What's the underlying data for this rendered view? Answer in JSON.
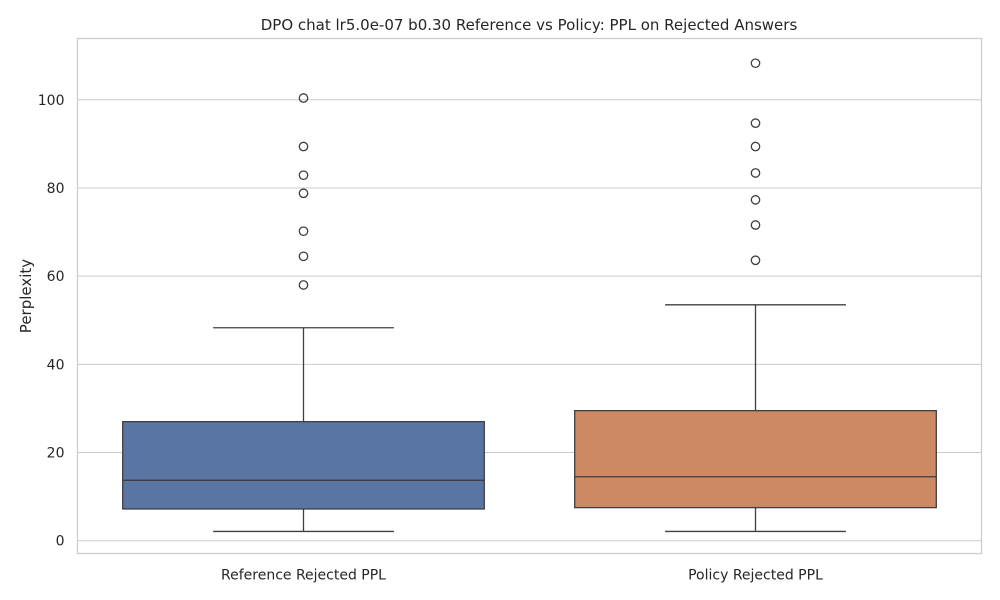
{
  "chart_data": {
    "type": "box",
    "title": "DPO chat lr5.0e-07 b0.30 Reference vs Policy: PPL on Rejected Answers",
    "xlabel": "",
    "ylabel": "Perplexity",
    "ylim": [
      -2.9,
      113.9
    ],
    "yticks": [
      0,
      20,
      40,
      60,
      80,
      100
    ],
    "grid": true,
    "categories": [
      "Reference Rejected PPL",
      "Policy Rejected PPL"
    ],
    "colors": [
      "#5875a4",
      "#cc8963"
    ],
    "series": [
      {
        "whisker_low": 2.1,
        "q1": 7.2,
        "median": 13.7,
        "q3": 27.0,
        "whisker_high": 48.3,
        "outliers": [
          58.0,
          64.5,
          70.2,
          78.8,
          82.9,
          89.4,
          100.4
        ]
      },
      {
        "whisker_low": 2.1,
        "q1": 7.5,
        "median": 14.5,
        "q3": 29.5,
        "whisker_high": 53.5,
        "outliers": [
          63.6,
          71.6,
          77.3,
          83.4,
          89.4,
          94.7,
          108.3
        ]
      }
    ]
  }
}
